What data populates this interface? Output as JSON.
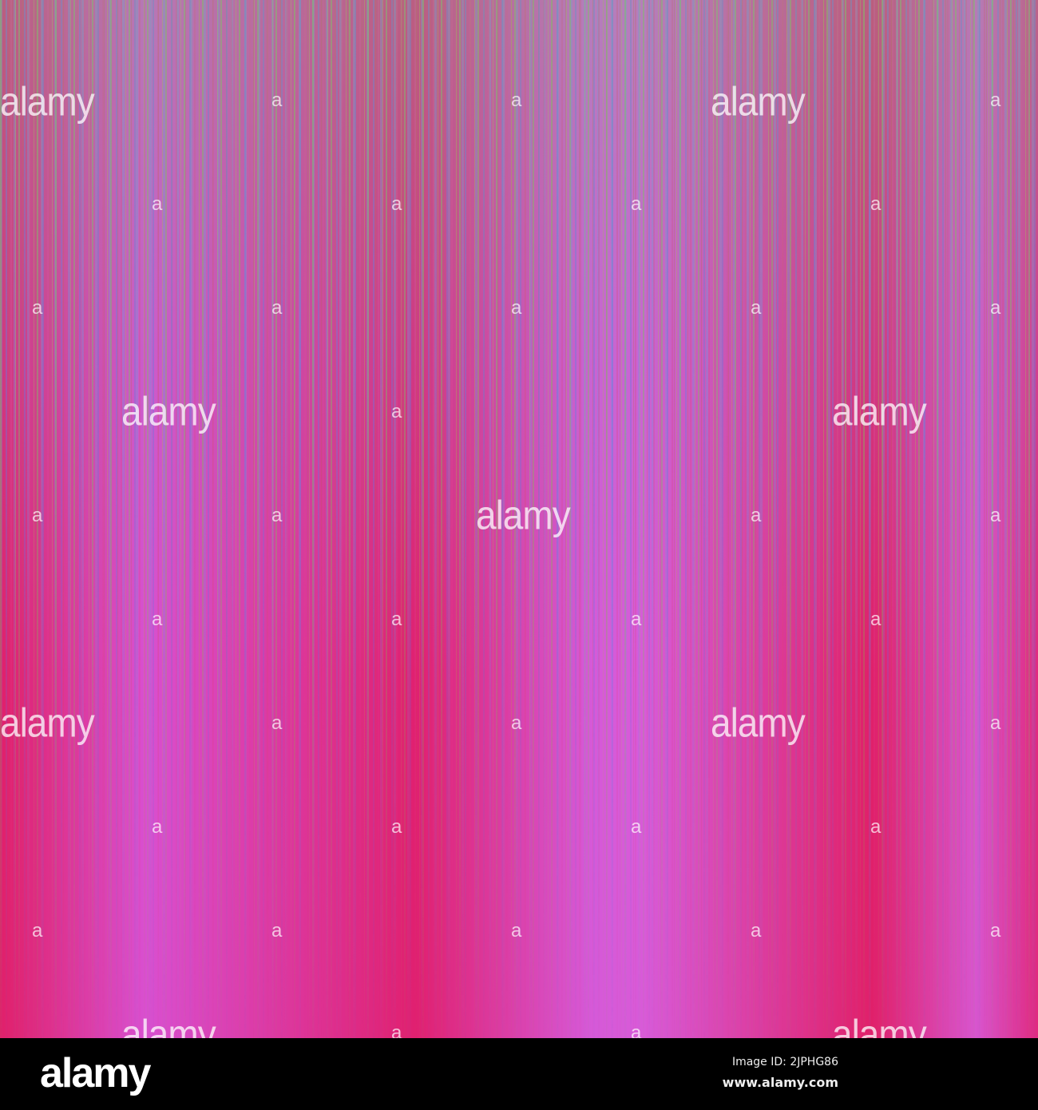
{
  "watermark": {
    "word": "alamy",
    "letter": "a"
  },
  "footer": {
    "logo": "alamy",
    "image_id": "Image ID: 2JPHG86",
    "website": "www.alamy.com"
  },
  "colors": {
    "red": "#e0206a",
    "magenta": "#d85ad8",
    "green": "#78c850",
    "blue": "#5a78e6"
  }
}
